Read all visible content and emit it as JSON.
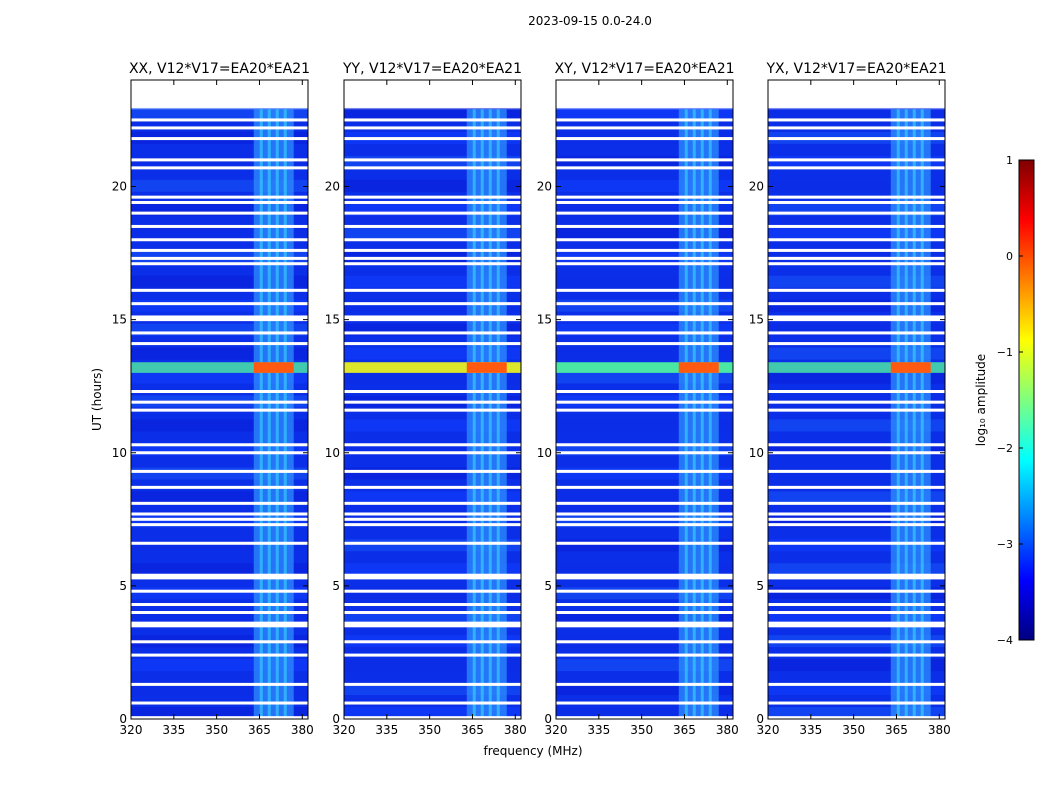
{
  "chart_data": {
    "type": "heatmap",
    "suptitle": "2023-09-15 0.0-24.0",
    "xlabel": "frequency (MHz)",
    "ylabel": "UT (hours)",
    "xlim": [
      320,
      382
    ],
    "ylim": [
      0,
      24
    ],
    "xticks": [
      320,
      335,
      350,
      365,
      380
    ],
    "yticks": [
      0,
      5,
      10,
      15,
      20
    ],
    "panels": [
      {
        "title": "XX, V12*V17=EA20*EA21",
        "data_top_hour": 22.9
      },
      {
        "title": "YY, V12*V17=EA20*EA21",
        "data_top_hour": 22.9
      },
      {
        "title": "XY, V12*V17=EA20*EA21",
        "data_top_hour": 22.9
      },
      {
        "title": "YX, V12*V17=EA20*EA21",
        "data_top_hour": 22.9
      }
    ],
    "colorbar": {
      "label": "log₁₀ amplitude",
      "range": [
        -4,
        1
      ],
      "ticks": [
        1,
        0,
        -1,
        -2,
        -3,
        -4
      ],
      "tick_labels": [
        "1",
        "0",
        "−1",
        "−2",
        "−3",
        "−4"
      ],
      "colormap": [
        "#00007f",
        "#0000ff",
        "#007fff",
        "#00ffff",
        "#7fff7f",
        "#ffff00",
        "#ff7f00",
        "#ff0000",
        "#7f0000"
      ]
    },
    "rfi_band_mhz": [
      363,
      377
    ],
    "strong_rfi_hours": [
      13.0,
      13.4
    ],
    "gap_hours": [
      0.05,
      0.6,
      1.3,
      2.4,
      2.9,
      3.5,
      3.6,
      4.0,
      4.3,
      4.8,
      5.3,
      5.4,
      6.6,
      7.3,
      7.5,
      7.7,
      8.1,
      8.7,
      9.3,
      10.0,
      10.3,
      11.6,
      11.9,
      12.3,
      14.1,
      14.5,
      15.0,
      15.1,
      15.6,
      16.1,
      17.1,
      17.3,
      17.6,
      18.0,
      18.5,
      19.0,
      19.4,
      19.6,
      20.7,
      21.0,
      21.8,
      22.2,
      22.5
    ]
  }
}
